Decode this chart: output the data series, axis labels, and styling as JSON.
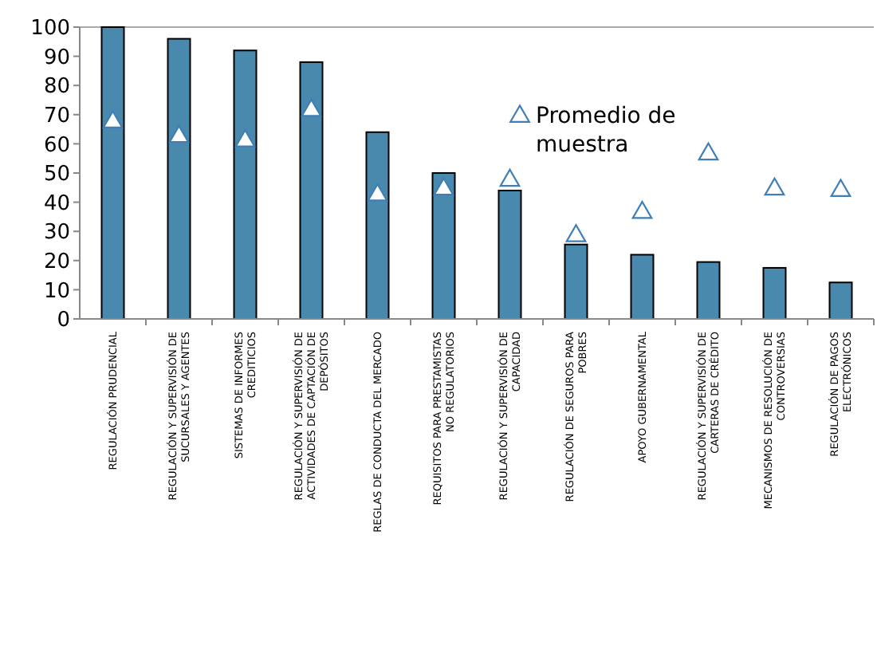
{
  "chart_data": {
    "type": "bar",
    "categories": [
      "REGULACIÓN PRUDENCIAL",
      "REGULACIÓN Y SUPERVISIÓN DE SUCURSALES Y AGENTES",
      "SISTEMAS DE INFORMES CREDITICIOS",
      "REGULACIÓN Y SUPERVISIÓN DE ACTIVIDADES DE CAPTACIÓN DE DEPÓSITOS",
      "REGLAS DE CONDUCTA DEL MERCADO",
      "REQUISITOS PARA PRESTAMISTAS NO REGULATORIOS",
      "REGULACIÓN Y SUPERVISIÓN DE CAPACIDAD",
      "REGULACIÓN DE SEGUROS PARA POBRES",
      "APOYO GUBERNAMENTAL",
      "REGULACIÓN Y SUPERVISIÓN DE CARTERAS DE CRÉDITO",
      "MECANISMOS DE RESOLUCIÓN DE CONTROVERSIAS",
      "REGULACIÓN DE PAGOS ELECTRÓNICOS"
    ],
    "series": [
      {
        "color": "#4a89ae",
        "values": [
          100,
          96,
          92,
          88,
          64,
          50,
          44,
          25.5,
          22,
          19.5,
          17.5,
          12.5
        ]
      },
      {
        "type": "scatter",
        "name": "Promedio de muestra",
        "color": "#3f7fb5",
        "marker": "triangle",
        "values": [
          68,
          63,
          61.5,
          72,
          43,
          45,
          48,
          29,
          37,
          57,
          45,
          44.5
        ]
      }
    ],
    "ylim": [
      0,
      100
    ],
    "yticks": [
      0,
      10,
      20,
      30,
      40,
      50,
      60,
      70,
      80,
      90,
      100
    ],
    "legend": "right"
  }
}
